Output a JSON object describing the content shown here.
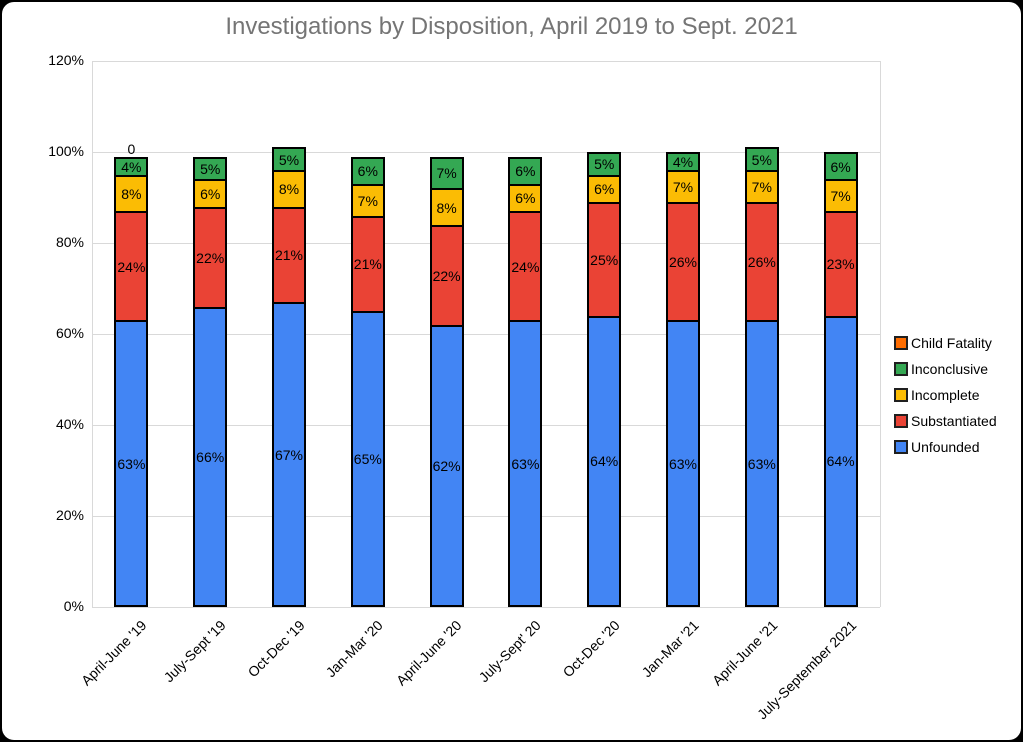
{
  "window": {
    "frame_color": "#000000",
    "card_background": "#ffffff"
  },
  "chart_data": {
    "type": "bar",
    "stacked": true,
    "title": "Investigations by Disposition, April 2019 to Sept. 2021",
    "title_color": "#757575",
    "categories": [
      "April-June '19",
      "July-Sept '19",
      "Oct-Dec '19",
      "Jan-Mar '20",
      "April-June '20",
      "July-Sept' 20",
      "Oct-Dec '20",
      "Jan-Mar '21",
      "April-June '21",
      "July-September 2021"
    ],
    "series": [
      {
        "name": "Unfounded",
        "color": "#4285F4",
        "values": [
          63,
          66,
          67,
          65,
          62,
          63,
          64,
          63,
          63,
          64
        ]
      },
      {
        "name": "Substantiated",
        "color": "#EA4335",
        "values": [
          24,
          22,
          21,
          21,
          22,
          24,
          25,
          26,
          26,
          23
        ]
      },
      {
        "name": "Incomplete",
        "color": "#FBBC04",
        "values": [
          8,
          6,
          8,
          7,
          8,
          6,
          6,
          7,
          7,
          7
        ]
      },
      {
        "name": "Inconclusive",
        "color": "#34A853",
        "values": [
          4,
          5,
          5,
          6,
          7,
          6,
          5,
          4,
          5,
          6
        ]
      },
      {
        "name": "Child Fatality",
        "color": "#FF6D01",
        "values": [
          0,
          0,
          0,
          0,
          0,
          0,
          0,
          0,
          0,
          0
        ]
      }
    ],
    "data_label_format": "percent",
    "zero_label": {
      "category_index": 0,
      "series": "Child Fatality",
      "text": "0"
    },
    "y_ticks": [
      "0%",
      "20%",
      "40%",
      "60%",
      "80%",
      "100%",
      "120%"
    ],
    "ylim": [
      0,
      120
    ],
    "grid": true,
    "gridline_color": "#d9d9d9",
    "bar_border_color": "#000000",
    "legend": {
      "position": "right",
      "items": [
        "Child Fatality",
        "Inconclusive",
        "Incomplete",
        "Substantiated",
        "Unfounded"
      ]
    }
  }
}
